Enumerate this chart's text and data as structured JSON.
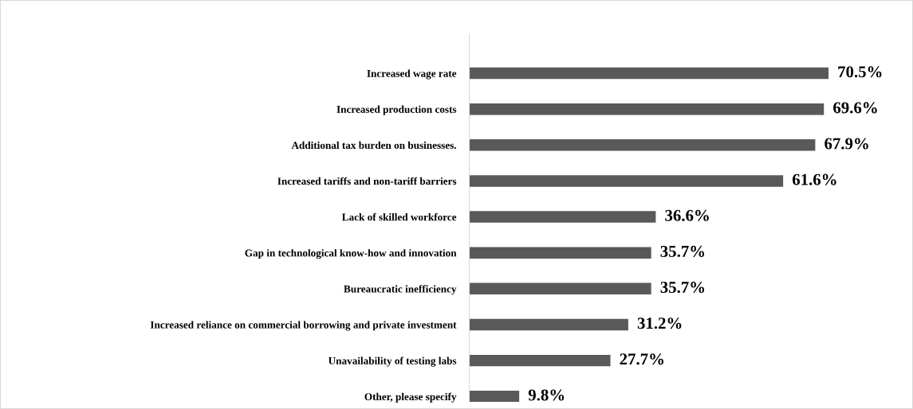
{
  "chart_data": {
    "type": "bar",
    "orientation": "horizontal",
    "categories": [
      "Increased wage rate",
      "Increased production costs",
      "Additional tax burden on businesses.",
      "Increased tariffs and non-tariff barriers",
      "Lack of skilled workforce",
      "Gap in technological know-how and innovation",
      "Bureaucratic inefficiency",
      "Increased reliance on commercial borrowing and private investment",
      "Unavailability of testing labs",
      "Other, please specify"
    ],
    "values": [
      70.5,
      69.6,
      67.9,
      61.6,
      36.6,
      35.7,
      35.7,
      31.2,
      27.7,
      9.8
    ],
    "value_labels": [
      "70.5%",
      "69.6%",
      "67.9%",
      "61.6%",
      "36.6%",
      "35.7%",
      "35.7%",
      "31.2%",
      "27.7%",
      "9.8%"
    ],
    "color": "#595959",
    "tick_labels": "y",
    "grid": false,
    "legend": false
  }
}
